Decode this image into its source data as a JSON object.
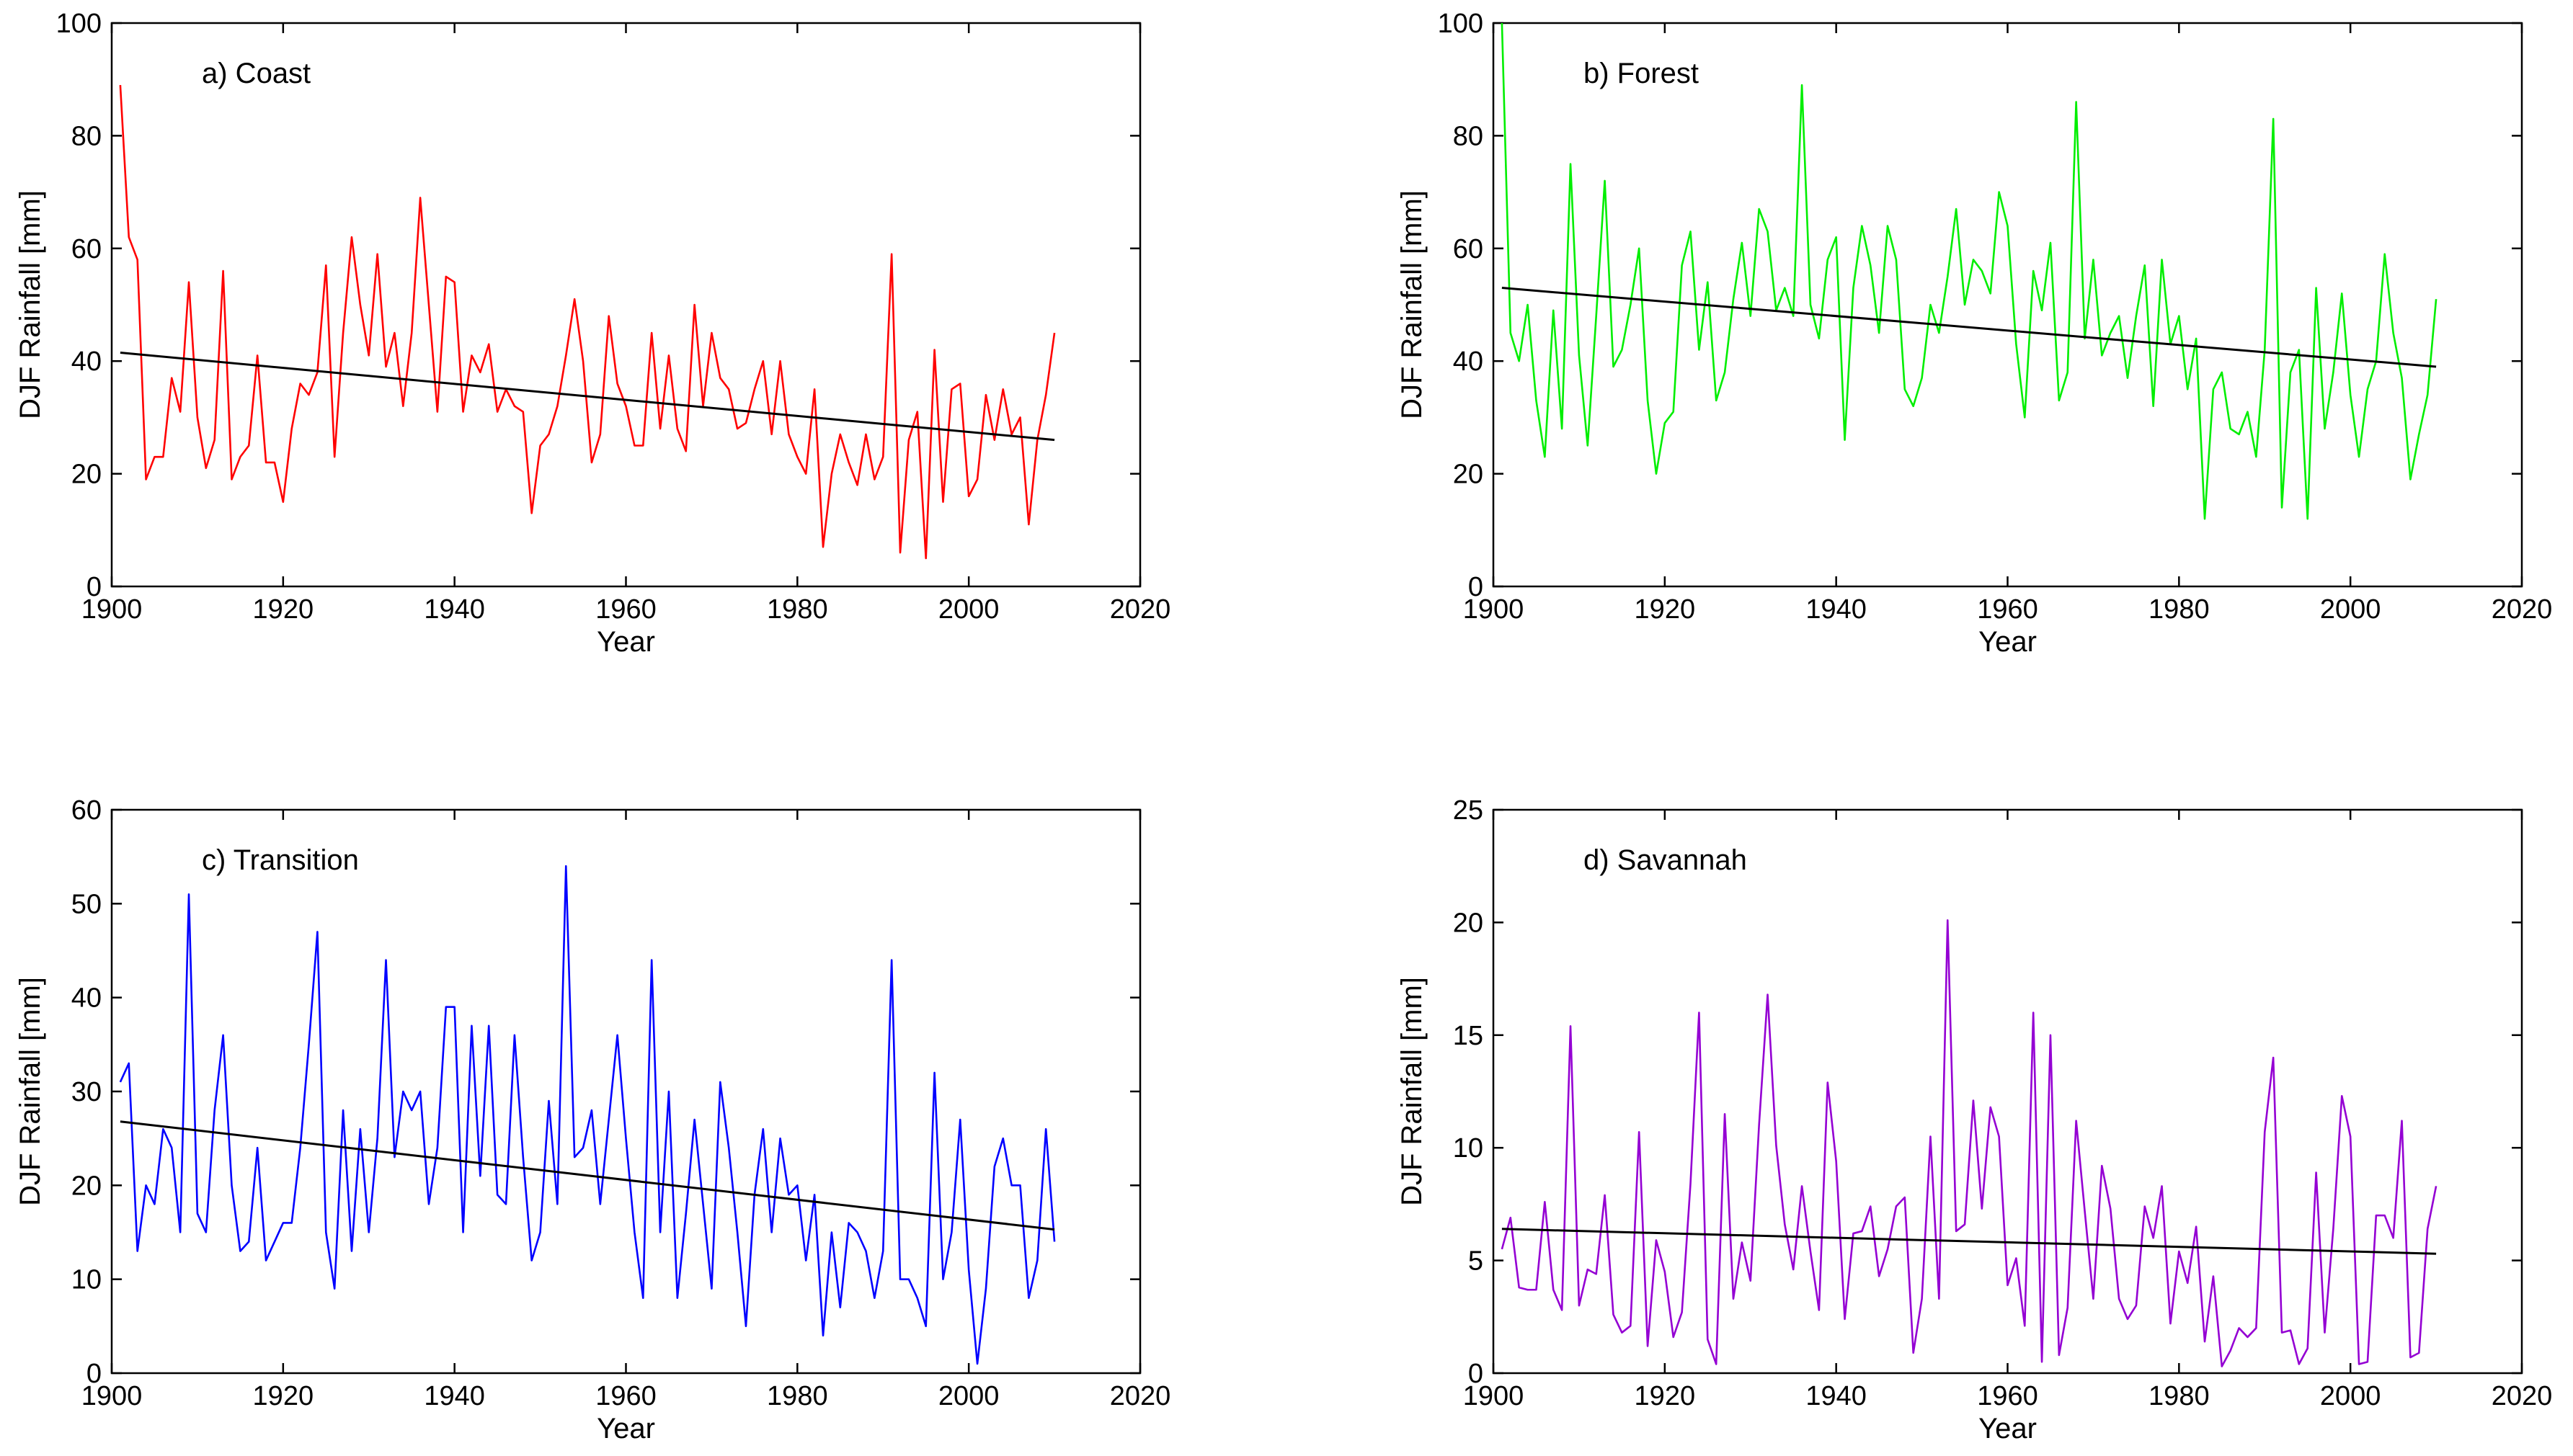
{
  "chart_data": [
    {
      "type": "line",
      "title": "a) Coast",
      "xlabel": "Year",
      "ylabel": "DJF Rainfall [mm]",
      "xlim": [
        1900,
        2020
      ],
      "ylim": [
        0,
        100
      ],
      "xticks": [
        1900,
        1920,
        1940,
        1960,
        1980,
        2000,
        2020
      ],
      "yticks": [
        0,
        20,
        40,
        60,
        80,
        100
      ],
      "series": [
        {
          "name": "DJF rainfall",
          "color": "#ff0000",
          "x_start": 1901,
          "values": [
            89,
            62,
            58,
            19,
            23,
            23,
            37,
            31,
            54,
            30,
            21,
            26,
            56,
            19,
            23,
            25,
            41,
            22,
            22,
            15,
            28,
            36,
            34,
            38,
            57,
            23,
            45,
            62,
            50,
            41,
            59,
            39,
            45,
            32,
            45,
            69,
            50,
            31,
            55,
            54,
            31,
            41,
            38,
            43,
            31,
            35,
            32,
            31,
            13,
            25,
            27,
            32,
            41,
            51,
            40,
            22,
            27,
            48,
            36,
            32,
            25,
            25,
            45,
            28,
            41,
            28,
            24,
            50,
            32,
            45,
            37,
            35,
            28,
            29,
            35,
            40,
            27,
            40,
            27,
            23,
            20,
            35,
            7,
            20,
            27,
            22,
            18,
            27,
            19,
            23,
            59,
            6,
            26,
            31,
            5,
            42,
            15,
            35,
            36,
            16,
            19,
            34,
            26,
            35,
            27,
            30,
            11,
            26,
            34,
            45
          ]
        },
        {
          "name": "Linear trend",
          "color": "#000000",
          "x": [
            1901,
            2010
          ],
          "values": [
            41.5,
            26.0
          ]
        }
      ]
    },
    {
      "type": "line",
      "title": "b) Forest",
      "xlabel": "Year",
      "ylabel": "DJF Rainfall [mm]",
      "xlim": [
        1900,
        2020
      ],
      "ylim": [
        0,
        100
      ],
      "xticks": [
        1900,
        1920,
        1940,
        1960,
        1980,
        2000,
        2020
      ],
      "yticks": [
        0,
        20,
        40,
        60,
        80,
        100
      ],
      "series": [
        {
          "name": "DJF rainfall",
          "color": "#00ee00",
          "x_start": 1901,
          "values": [
            100,
            45,
            40,
            50,
            33,
            23,
            49,
            28,
            75,
            41,
            25,
            48,
            72,
            39,
            42,
            50,
            60,
            33,
            20,
            29,
            31,
            57,
            63,
            42,
            54,
            33,
            38,
            51,
            61,
            48,
            67,
            63,
            49,
            53,
            48,
            89,
            50,
            44,
            58,
            62,
            26,
            53,
            64,
            57,
            45,
            64,
            58,
            35,
            32,
            37,
            50,
            45,
            55,
            67,
            50,
            58,
            56,
            52,
            70,
            64,
            43,
            30,
            56,
            49,
            61,
            33,
            38,
            86,
            44,
            58,
            41,
            45,
            48,
            37,
            48,
            57,
            32,
            58,
            43,
            48,
            35,
            44,
            12,
            35,
            38,
            28,
            27,
            31,
            23,
            42,
            83,
            14,
            38,
            42,
            12,
            53,
            28,
            38,
            52,
            34,
            23,
            35,
            40,
            59,
            45,
            37,
            19,
            27,
            34,
            51
          ]
        },
        {
          "name": "Linear trend",
          "color": "#000000",
          "x": [
            1901,
            2010
          ],
          "values": [
            53.0,
            39.0
          ]
        }
      ]
    },
    {
      "type": "line",
      "title": "c) Transition",
      "xlabel": "Year",
      "ylabel": "DJF Rainfall [mm]",
      "xlim": [
        1900,
        2020
      ],
      "ylim": [
        0,
        60
      ],
      "xticks": [
        1900,
        1920,
        1940,
        1960,
        1980,
        2000,
        2020
      ],
      "yticks": [
        0,
        10,
        20,
        30,
        40,
        50,
        60
      ],
      "series": [
        {
          "name": "DJF rainfall",
          "color": "#0000ff",
          "x_start": 1901,
          "values": [
            31,
            33,
            13,
            20,
            18,
            26,
            24,
            15,
            51,
            17,
            15,
            28,
            36,
            20,
            13,
            14,
            24,
            12,
            14,
            16,
            16,
            24,
            35,
            47,
            15,
            9,
            28,
            13,
            26,
            15,
            25,
            44,
            23,
            30,
            28,
            30,
            18,
            24,
            39,
            39,
            15,
            37,
            21,
            37,
            19,
            18,
            36,
            23,
            12,
            15,
            29,
            18,
            54,
            23,
            24,
            28,
            18,
            27,
            36,
            25,
            15,
            8,
            44,
            15,
            30,
            8,
            17,
            27,
            18,
            9,
            31,
            24,
            15,
            5,
            19,
            26,
            15,
            25,
            19,
            20,
            12,
            19,
            4,
            15,
            7,
            16,
            15,
            13,
            8,
            13,
            44,
            10,
            10,
            8,
            5,
            32,
            10,
            15,
            27,
            11,
            1,
            9,
            22,
            25,
            20,
            20,
            8,
            12,
            26,
            14
          ]
        },
        {
          "name": "Linear trend",
          "color": "#000000",
          "x": [
            1901,
            2010
          ],
          "values": [
            26.8,
            15.3
          ]
        }
      ]
    },
    {
      "type": "line",
      "title": "d) Savannah",
      "xlabel": "Year",
      "ylabel": "DJF Rainfall [mm]",
      "xlim": [
        1900,
        2020
      ],
      "ylim": [
        0,
        25
      ],
      "xticks": [
        1900,
        1920,
        1940,
        1960,
        1980,
        2000,
        2020
      ],
      "yticks": [
        0,
        5,
        10,
        15,
        20,
        25
      ],
      "series": [
        {
          "name": "DJF rainfall",
          "color": "#9400d3",
          "x_start": 1901,
          "values": [
            5.5,
            6.9,
            3.8,
            3.7,
            3.7,
            7.6,
            3.7,
            2.8,
            15.4,
            3.0,
            4.6,
            4.4,
            7.9,
            2.6,
            1.8,
            2.1,
            10.7,
            1.2,
            5.9,
            4.5,
            1.6,
            2.7,
            8.4,
            16.0,
            1.5,
            0.4,
            11.5,
            3.3,
            5.8,
            4.1,
            11.0,
            16.8,
            10.1,
            6.6,
            4.6,
            8.3,
            5.4,
            2.8,
            12.9,
            9.4,
            2.4,
            6.2,
            6.3,
            7.4,
            4.3,
            5.5,
            7.4,
            7.8,
            0.9,
            3.3,
            10.5,
            3.3,
            20.1,
            6.3,
            6.6,
            12.1,
            7.3,
            11.8,
            10.5,
            3.9,
            5.1,
            2.1,
            16.0,
            0.5,
            15.0,
            0.8,
            2.9,
            11.2,
            7.2,
            3.3,
            9.2,
            7.3,
            3.3,
            2.4,
            3.0,
            7.4,
            6.0,
            8.3,
            2.2,
            5.4,
            4.0,
            6.5,
            1.4,
            4.3,
            0.3,
            1.0,
            2.0,
            1.6,
            2.0,
            10.7,
            14.0,
            1.8,
            1.9,
            0.4,
            1.1,
            8.9,
            1.8,
            6.4,
            12.3,
            10.5,
            0.4,
            0.5,
            7.0,
            7.0,
            6.0,
            11.2,
            0.7,
            0.9,
            6.4,
            8.3
          ]
        },
        {
          "name": "Linear trend",
          "color": "#000000",
          "x": [
            1901,
            2010
          ],
          "values": [
            6.4,
            5.3
          ]
        }
      ]
    }
  ]
}
